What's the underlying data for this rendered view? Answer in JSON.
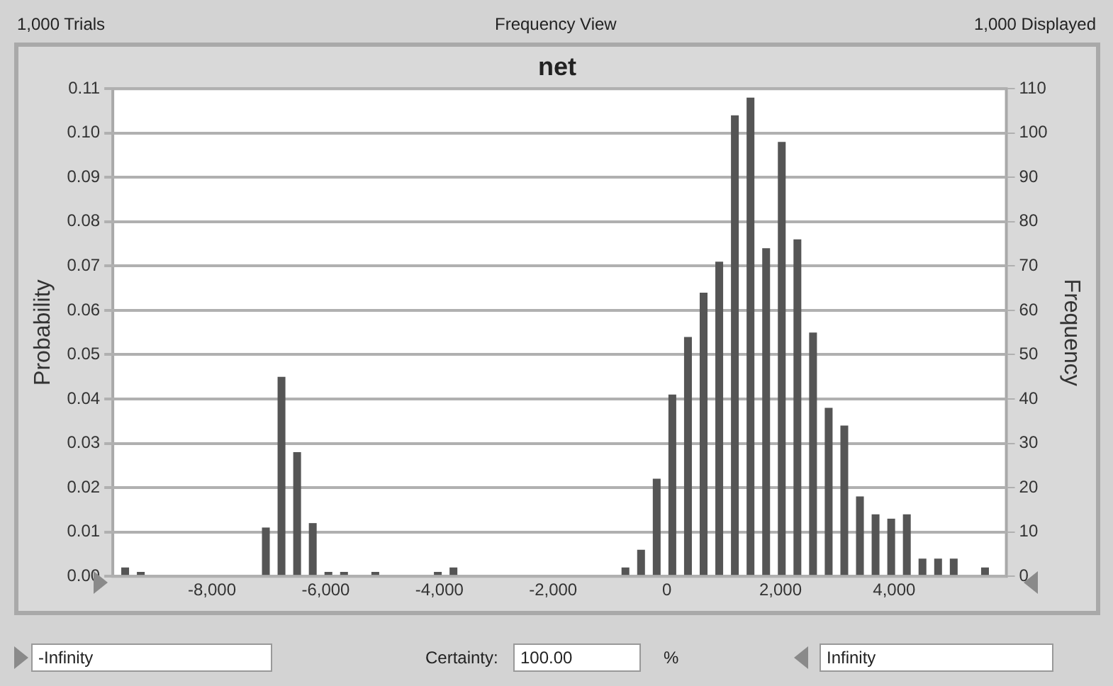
{
  "chart_data": {
    "type": "histogram",
    "title": "net",
    "ylabel": "Probability",
    "y2label": "Frequency",
    "annotations": [
      "1,000 Trials",
      "Frequency View",
      "1,000 Displayed",
      "-Infinity",
      "Certainty:",
      "100.00",
      "%",
      "Infinity"
    ],
    "bins": [
      -9665,
      -9390,
      -9115,
      -8840,
      -8565,
      -8290,
      -8015,
      -7740,
      -7465,
      -7190,
      -6915,
      -6640,
      -6365,
      -6090,
      -5815,
      -5540,
      -5265,
      -4990,
      -4715,
      -4440,
      -4165,
      -3890,
      -3615,
      -3340,
      -3065,
      -2790,
      -2515,
      -2240,
      -1965,
      -1690,
      -1415,
      -1140,
      -865,
      -590,
      -315,
      -40,
      235,
      510,
      785,
      1060,
      1335,
      1610,
      1885,
      2160,
      2435,
      2710,
      2985,
      3260,
      3535,
      3810,
      4085,
      4360,
      4635,
      4910,
      5185,
      5460,
      5735
    ],
    "values": [
      0.002,
      0.001,
      0,
      0,
      0,
      0,
      0,
      0,
      0,
      0.011,
      0.045,
      0.028,
      0.012,
      0.001,
      0.001,
      0,
      0.001,
      0,
      0,
      0,
      0.001,
      0.002,
      0,
      0,
      0,
      0,
      0,
      0,
      0,
      0,
      0,
      0,
      0.002,
      0.006,
      0.022,
      0.041,
      0.054,
      0.064,
      0.071,
      0.104,
      0.108,
      0.074,
      0.098,
      0.076,
      0.055,
      0.038,
      0.034,
      0.018,
      0.014,
      0.013,
      0.014,
      0.004,
      0.004,
      0.004,
      0,
      0.002
    ],
    "color": "#555555",
    "xlim": [
      -9745,
      5973
    ],
    "xticks": [
      {
        "value": -8000,
        "label": "-8,000"
      },
      {
        "value": -6000,
        "label": "-6,000"
      },
      {
        "value": -4000,
        "label": "-4,000"
      },
      {
        "value": -2000,
        "label": "-2,000"
      },
      0,
      {
        "value": 2000,
        "label": "2,000"
      },
      {
        "value": 4000,
        "label": "4,000"
      }
    ],
    "ylim": [
      0,
      0.11
    ],
    "yticks": [
      {
        "value": 0,
        "label": "0.00"
      },
      0.01,
      0.02,
      0.03,
      0.04,
      0.05,
      0.06,
      0.07,
      0.08,
      0.09,
      {
        "value": 0.1,
        "label": "0.10"
      },
      0.11
    ],
    "y2lim": [
      0,
      110
    ],
    "y2ticks": [
      0,
      10,
      20,
      30,
      40,
      50,
      60,
      70,
      80,
      90,
      100,
      110
    ],
    "grid": "y",
    "legend": false
  }
}
